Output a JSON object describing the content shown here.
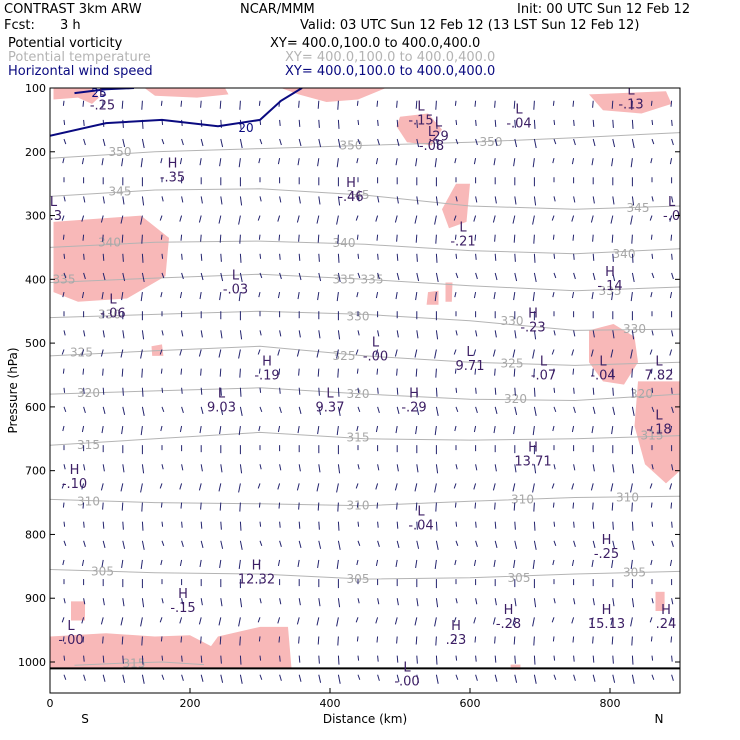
{
  "header": {
    "model": "CONTRAST   3km ARW",
    "fcst_label": "Fcst:",
    "fcst_value": "3 h",
    "center": "NCAR/MMM",
    "init": "Init: 00 UTC Sun 12 Feb 12",
    "valid": "Valid: 03 UTC Sun 12 Feb 12 (13 LST Sun 12 Feb 12)",
    "fields": [
      {
        "name": "Potential vorticity",
        "xy": "XY=  400.0,100.0 to 400.0,400.0",
        "color": "#000000"
      },
      {
        "name": "Potential temperature",
        "xy": "XY=  400.0,100.0 to 400.0,400.0",
        "color": "#b4b4b4"
      },
      {
        "name": "Horizontal wind speed",
        "xy": "XY=  400.0,100.0 to 400.0,400.0",
        "color": "#0a0a80"
      }
    ]
  },
  "chart_data": {
    "type": "cross-section",
    "xlabel": "Distance (km)",
    "ylabel": "Pressure (hPa)",
    "xlim": [
      0,
      900
    ],
    "ylim": [
      1050,
      100
    ],
    "x_ticks": [
      "0",
      "200",
      "400",
      "600",
      "800"
    ],
    "x_tick_values": [
      0,
      200,
      400,
      600,
      800
    ],
    "y_ticks": [
      "100",
      "200",
      "300",
      "400",
      "500",
      "600",
      "700",
      "800",
      "900",
      "1000"
    ],
    "y_tick_values": [
      100,
      200,
      300,
      400,
      500,
      600,
      700,
      800,
      900,
      1000
    ],
    "end_labels": {
      "left": "S",
      "right": "N"
    },
    "colors": {
      "pv_fill": "#f8b8b8",
      "theta": "#b4b4b4",
      "wind": "#0a0a80",
      "vectors": "#23236e",
      "pv_label": "#3c1e64"
    },
    "theta_contours": [
      {
        "label": "350",
        "pts": [
          [
            0,
            210
          ],
          [
            150,
            200
          ],
          [
            300,
            195
          ],
          [
            450,
            190
          ],
          [
            600,
            185
          ],
          [
            750,
            178
          ],
          [
            900,
            170
          ]
        ],
        "labels_at": [
          [
            100,
            200
          ],
          [
            430,
            190
          ],
          [
            630,
            185
          ]
        ]
      },
      {
        "label": "345",
        "pts": [
          [
            0,
            270
          ],
          [
            150,
            260
          ],
          [
            300,
            258
          ],
          [
            450,
            268
          ],
          [
            600,
            285
          ],
          [
            750,
            290
          ],
          [
            900,
            285
          ]
        ],
        "labels_at": [
          [
            100,
            262
          ],
          [
            440,
            268
          ],
          [
            840,
            288
          ]
        ]
      },
      {
        "label": "340",
        "pts": [
          [
            0,
            350
          ],
          [
            150,
            342
          ],
          [
            300,
            340
          ],
          [
            450,
            345
          ],
          [
            600,
            355
          ],
          [
            750,
            360
          ],
          [
            900,
            352
          ]
        ],
        "labels_at": [
          [
            85,
            342
          ],
          [
            420,
            343
          ],
          [
            820,
            360
          ]
        ]
      },
      {
        "label": "335",
        "pts": [
          [
            0,
            405
          ],
          [
            150,
            398
          ],
          [
            300,
            392
          ],
          [
            450,
            400
          ],
          [
            600,
            410
          ],
          [
            750,
            418
          ],
          [
            900,
            412
          ]
        ],
        "labels_at": [
          [
            20,
            400
          ],
          [
            420,
            400
          ],
          [
            460,
            400
          ],
          [
            800,
            418
          ]
        ]
      },
      {
        "label": "330",
        "pts": [
          [
            0,
            460
          ],
          [
            150,
            455
          ],
          [
            300,
            450
          ],
          [
            450,
            455
          ],
          [
            600,
            465
          ],
          [
            750,
            480
          ],
          [
            900,
            478
          ]
        ],
        "labels_at": [
          [
            85,
            455
          ],
          [
            440,
            458
          ],
          [
            660,
            465
          ],
          [
            835,
            478
          ]
        ]
      },
      {
        "label": "325",
        "pts": [
          [
            0,
            520
          ],
          [
            150,
            512
          ],
          [
            300,
            505
          ],
          [
            450,
            520
          ],
          [
            600,
            530
          ],
          [
            750,
            535
          ],
          [
            900,
            530
          ]
        ],
        "labels_at": [
          [
            45,
            515
          ],
          [
            420,
            520
          ],
          [
            660,
            532
          ]
        ]
      },
      {
        "label": "320",
        "pts": [
          [
            0,
            580
          ],
          [
            150,
            575
          ],
          [
            300,
            570
          ],
          [
            450,
            580
          ],
          [
            600,
            588
          ],
          [
            750,
            590
          ],
          [
            900,
            580
          ]
        ],
        "labels_at": [
          [
            55,
            578
          ],
          [
            440,
            580
          ],
          [
            665,
            588
          ],
          [
            845,
            580
          ]
        ]
      },
      {
        "label": "315",
        "pts": [
          [
            0,
            660
          ],
          [
            150,
            650
          ],
          [
            300,
            640
          ],
          [
            450,
            650
          ],
          [
            600,
            652
          ],
          [
            750,
            650
          ],
          [
            900,
            645
          ]
        ],
        "labels_at": [
          [
            55,
            660
          ],
          [
            440,
            648
          ],
          [
            860,
            645
          ]
        ]
      },
      {
        "label": "310",
        "pts": [
          [
            0,
            745
          ],
          [
            150,
            750
          ],
          [
            300,
            752
          ],
          [
            450,
            755
          ],
          [
            600,
            748
          ],
          [
            750,
            742
          ],
          [
            900,
            740
          ]
        ],
        "labels_at": [
          [
            55,
            748
          ],
          [
            440,
            755
          ],
          [
            675,
            745
          ],
          [
            825,
            742
          ]
        ]
      },
      {
        "label": "305",
        "pts": [
          [
            0,
            855
          ],
          [
            150,
            860
          ],
          [
            300,
            862
          ],
          [
            450,
            870
          ],
          [
            600,
            868
          ],
          [
            750,
            862
          ],
          [
            900,
            858
          ]
        ],
        "labels_at": [
          [
            75,
            858
          ],
          [
            440,
            870
          ],
          [
            670,
            868
          ],
          [
            835,
            860
          ]
        ]
      },
      {
        "label": "315",
        "pts": [
          [
            35,
            1005
          ],
          [
            100,
            1002
          ],
          [
            160,
            1000
          ],
          [
            220,
            1004
          ]
        ],
        "labels_at": [
          [
            120,
            1002
          ]
        ]
      }
    ],
    "wind_contours": [
      {
        "label": "20",
        "pts": [
          [
            0,
            175
          ],
          [
            80,
            155
          ],
          [
            160,
            150
          ],
          [
            240,
            160
          ],
          [
            300,
            150
          ],
          [
            330,
            120
          ],
          [
            360,
            100
          ]
        ],
        "labels_at": [
          [
            280,
            163
          ]
        ]
      },
      {
        "label": "25",
        "pts": [
          [
            35,
            108
          ],
          [
            80,
            102
          ],
          [
            120,
            100
          ]
        ],
        "labels_at": [
          [
            70,
            108
          ]
        ]
      }
    ],
    "pv_regions": [
      [
        [
          5,
          100
        ],
        [
          60,
          100
        ],
        [
          70,
          115
        ],
        [
          60,
          125
        ],
        [
          40,
          115
        ],
        [
          5,
          118
        ]
      ],
      [
        [
          135,
          100
        ],
        [
          250,
          100
        ],
        [
          255,
          110
        ],
        [
          210,
          115
        ],
        [
          150,
          112
        ]
      ],
      [
        [
          330,
          100
        ],
        [
          480,
          100
        ],
        [
          440,
          118
        ],
        [
          395,
          122
        ],
        [
          355,
          110
        ]
      ],
      [
        [
          500,
          145
        ],
        [
          540,
          140
        ],
        [
          560,
          165
        ],
        [
          545,
          190
        ],
        [
          510,
          185
        ],
        [
          495,
          160
        ]
      ],
      [
        [
          770,
          110
        ],
        [
          880,
          105
        ],
        [
          888,
          125
        ],
        [
          845,
          140
        ],
        [
          790,
          135
        ]
      ],
      [
        [
          580,
          250
        ],
        [
          600,
          250
        ],
        [
          595,
          310
        ],
        [
          570,
          320
        ],
        [
          560,
          290
        ]
      ],
      [
        [
          5,
          310
        ],
        [
          130,
          300
        ],
        [
          170,
          335
        ],
        [
          165,
          395
        ],
        [
          110,
          430
        ],
        [
          40,
          435
        ],
        [
          5,
          420
        ]
      ],
      [
        [
          540,
          420
        ],
        [
          555,
          418
        ],
        [
          555,
          440
        ],
        [
          538,
          440
        ]
      ],
      [
        [
          565,
          405
        ],
        [
          575,
          405
        ],
        [
          574,
          435
        ],
        [
          565,
          435
        ]
      ],
      [
        [
          145,
          505
        ],
        [
          160,
          502
        ],
        [
          162,
          520
        ],
        [
          146,
          520
        ]
      ],
      [
        [
          770,
          480
        ],
        [
          805,
          470
        ],
        [
          835,
          490
        ],
        [
          840,
          530
        ],
        [
          820,
          565
        ],
        [
          790,
          560
        ],
        [
          770,
          530
        ]
      ],
      [
        [
          840,
          560
        ],
        [
          900,
          560
        ],
        [
          900,
          700
        ],
        [
          880,
          720
        ],
        [
          850,
          690
        ],
        [
          835,
          630
        ]
      ],
      [
        [
          30,
          905
        ],
        [
          50,
          905
        ],
        [
          50,
          935
        ],
        [
          30,
          935
        ]
      ],
      [
        [
          865,
          890
        ],
        [
          878,
          890
        ],
        [
          878,
          920
        ],
        [
          865,
          920
        ]
      ],
      [
        [
          0,
          960
        ],
        [
          80,
          955
        ],
        [
          150,
          960
        ],
        [
          200,
          958
        ],
        [
          230,
          975
        ],
        [
          240,
          960
        ],
        [
          300,
          945
        ],
        [
          340,
          945
        ],
        [
          345,
          1010
        ],
        [
          0,
          1010
        ]
      ],
      [
        [
          658,
          1004
        ],
        [
          672,
          1004
        ],
        [
          672,
          1012
        ],
        [
          658,
          1012
        ]
      ]
    ],
    "pv_extrema": [
      {
        "type": "L",
        "label": "-.25",
        "x": 75,
        "p": 112
      },
      {
        "type": "H",
        "label": "-.35",
        "x": 175,
        "p": 225
      },
      {
        "type": "H",
        "label": "-.46",
        "x": 430,
        "p": 255
      },
      {
        "type": "L",
        "label": "-.15",
        "x": 530,
        "p": 135
      },
      {
        "type": "L",
        "label": ".29",
        "x": 555,
        "p": 160
      },
      {
        "type": "L",
        "label": "-.08",
        "x": 545,
        "p": 175
      },
      {
        "type": "L",
        "label": "-.04",
        "x": 670,
        "p": 140
      },
      {
        "type": "L",
        "label": "-.13",
        "x": 830,
        "p": 110
      },
      {
        "type": "L",
        "label": "-.3",
        "x": 5,
        "p": 285
      },
      {
        "type": "L",
        "label": "-.0",
        "x": 888,
        "p": 285
      },
      {
        "type": "L",
        "label": "-.21",
        "x": 590,
        "p": 325
      },
      {
        "type": "L",
        "label": "-.03",
        "x": 265,
        "p": 400
      },
      {
        "type": "L",
        "label": "-.06",
        "x": 90,
        "p": 438
      },
      {
        "type": "H",
        "label": "-.14",
        "x": 800,
        "p": 395
      },
      {
        "type": "H",
        "label": "-.23",
        "x": 690,
        "p": 460
      },
      {
        "type": "L",
        "label": "9.71",
        "x": 600,
        "p": 520
      },
      {
        "type": "L",
        "label": "-.00",
        "x": 465,
        "p": 505
      },
      {
        "type": "H",
        "label": "-.19",
        "x": 310,
        "p": 535
      },
      {
        "type": "L",
        "label": "9.03",
        "x": 245,
        "p": 585
      },
      {
        "type": "L",
        "label": "9.37",
        "x": 400,
        "p": 585
      },
      {
        "type": "H",
        "label": "-.29",
        "x": 520,
        "p": 585
      },
      {
        "type": "L",
        "label": "-.07",
        "x": 705,
        "p": 535
      },
      {
        "type": "L",
        "label": "-.04",
        "x": 790,
        "p": 535
      },
      {
        "type": "L",
        "label": "7.82",
        "x": 870,
        "p": 535
      },
      {
        "type": "L",
        "label": "-.18",
        "x": 870,
        "p": 620
      },
      {
        "type": "H",
        "label": "13.71",
        "x": 690,
        "p": 670
      },
      {
        "type": "H",
        "label": "-.10",
        "x": 35,
        "p": 705
      },
      {
        "type": "L",
        "label": "-.04",
        "x": 530,
        "p": 770
      },
      {
        "type": "H",
        "label": "-.25",
        "x": 795,
        "p": 815
      },
      {
        "type": "H",
        "label": "12.32",
        "x": 295,
        "p": 855
      },
      {
        "type": "H",
        "label": "-.15",
        "x": 190,
        "p": 900
      },
      {
        "type": "H",
        "label": "-.28",
        "x": 655,
        "p": 925
      },
      {
        "type": "H",
        "label": "15.13",
        "x": 795,
        "p": 925
      },
      {
        "type": "H",
        "label": ".24",
        "x": 880,
        "p": 925
      },
      {
        "type": "H",
        "label": ".23",
        "x": 580,
        "p": 950
      },
      {
        "type": "L",
        "label": "-.00",
        "x": 30,
        "p": 950
      },
      {
        "type": "L",
        "label": "-.00",
        "x": 510,
        "p": 1015
      }
    ]
  }
}
